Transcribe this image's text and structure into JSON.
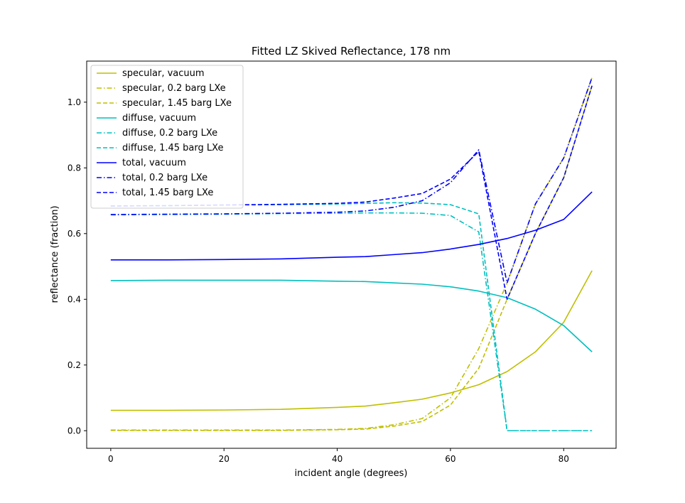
{
  "chart_data": {
    "type": "line",
    "title": "Fitted LZ Skived Reflectance, 178 nm",
    "xlabel": "incident angle (degrees)",
    "ylabel": "reflectance (fraction)",
    "xlim": [
      -4.25,
      89.25
    ],
    "ylim": [
      -0.0535,
      1.125
    ],
    "xticks": [
      0,
      20,
      40,
      60,
      80
    ],
    "yticks": [
      0.0,
      0.2,
      0.4,
      0.6,
      0.8,
      1.0
    ],
    "xtick_labels": [
      "0",
      "20",
      "40",
      "60",
      "80"
    ],
    "ytick_labels": [
      "0.0",
      "0.2",
      "0.4",
      "0.6",
      "0.8",
      "1.0"
    ],
    "grid": false,
    "legend_position": "upper-left",
    "series": [
      {
        "name": "specular, vacuum",
        "color": "#bfbf00",
        "style": "solid",
        "x": [
          0,
          10,
          20,
          30,
          40,
          45,
          50,
          55,
          60,
          65,
          70,
          75,
          80,
          85
        ],
        "y": [
          0.062,
          0.062,
          0.063,
          0.065,
          0.071,
          0.075,
          0.085,
          0.096,
          0.115,
          0.14,
          0.18,
          0.24,
          0.33,
          0.487
        ]
      },
      {
        "name": "specular, 0.2 barg LXe",
        "color": "#bfbf00",
        "style": "dashdot",
        "x": [
          0,
          10,
          20,
          30,
          40,
          45,
          50,
          55,
          60,
          65,
          70,
          75,
          80,
          85
        ],
        "y": [
          0.002,
          0.002,
          0.002,
          0.002,
          0.004,
          0.007,
          0.018,
          0.037,
          0.1,
          0.25,
          0.45,
          0.69,
          0.83,
          1.075
        ]
      },
      {
        "name": "specular, 1.45 barg LXe",
        "color": "#bfbf00",
        "style": "dashed",
        "x": [
          0,
          10,
          20,
          30,
          40,
          45,
          50,
          55,
          60,
          65,
          70,
          75,
          80,
          85
        ],
        "y": [
          0.001,
          0.001,
          0.001,
          0.001,
          0.003,
          0.005,
          0.014,
          0.028,
          0.078,
          0.19,
          0.4,
          0.6,
          0.77,
          1.05
        ]
      },
      {
        "name": "diffuse, vacuum",
        "color": "#00bfbf",
        "style": "solid",
        "x": [
          0,
          10,
          20,
          30,
          40,
          45,
          50,
          55,
          60,
          65,
          70,
          75,
          80,
          85
        ],
        "y": [
          0.457,
          0.458,
          0.458,
          0.458,
          0.455,
          0.454,
          0.45,
          0.446,
          0.438,
          0.425,
          0.405,
          0.37,
          0.32,
          0.24
        ]
      },
      {
        "name": "diffuse, 0.2 barg LXe",
        "color": "#00bfbf",
        "style": "dashdot",
        "x": [
          0,
          10,
          20,
          30,
          40,
          45,
          50,
          55,
          60,
          65,
          70,
          75,
          80,
          85
        ],
        "y": [
          0.657,
          0.658,
          0.659,
          0.661,
          0.662,
          0.663,
          0.663,
          0.662,
          0.655,
          0.605,
          0.0,
          0.0,
          0.0,
          0.0
        ]
      },
      {
        "name": "diffuse, 1.45 barg LXe",
        "color": "#00bfbf",
        "style": "dashed",
        "x": [
          0,
          10,
          20,
          30,
          40,
          45,
          50,
          55,
          60,
          65,
          70,
          75,
          80,
          85
        ],
        "y": [
          0.684,
          0.685,
          0.687,
          0.688,
          0.69,
          0.692,
          0.694,
          0.693,
          0.688,
          0.66,
          0.0,
          0.0,
          0.0,
          0.0
        ]
      },
      {
        "name": "total, vacuum",
        "color": "#0000ff",
        "style": "solid",
        "x": [
          0,
          10,
          20,
          30,
          40,
          45,
          50,
          55,
          60,
          65,
          70,
          75,
          80,
          85
        ],
        "y": [
          0.52,
          0.52,
          0.521,
          0.523,
          0.528,
          0.53,
          0.536,
          0.542,
          0.553,
          0.567,
          0.585,
          0.61,
          0.643,
          0.727
        ]
      },
      {
        "name": "total, 0.2 barg LXe",
        "color": "#0000ff",
        "style": "dashdot",
        "x": [
          0,
          10,
          20,
          30,
          40,
          45,
          50,
          55,
          60,
          65,
          70,
          75,
          80,
          85
        ],
        "y": [
          0.658,
          0.659,
          0.66,
          0.662,
          0.665,
          0.669,
          0.68,
          0.7,
          0.755,
          0.855,
          0.45,
          0.69,
          0.83,
          1.075
        ]
      },
      {
        "name": "total, 1.45 barg LXe",
        "color": "#0000ff",
        "style": "dashed",
        "x": [
          0,
          10,
          20,
          30,
          40,
          45,
          50,
          55,
          60,
          65,
          70,
          75,
          80,
          85
        ],
        "y": [
          0.684,
          0.685,
          0.687,
          0.689,
          0.692,
          0.696,
          0.708,
          0.722,
          0.766,
          0.85,
          0.4,
          0.6,
          0.77,
          1.05
        ]
      }
    ]
  }
}
